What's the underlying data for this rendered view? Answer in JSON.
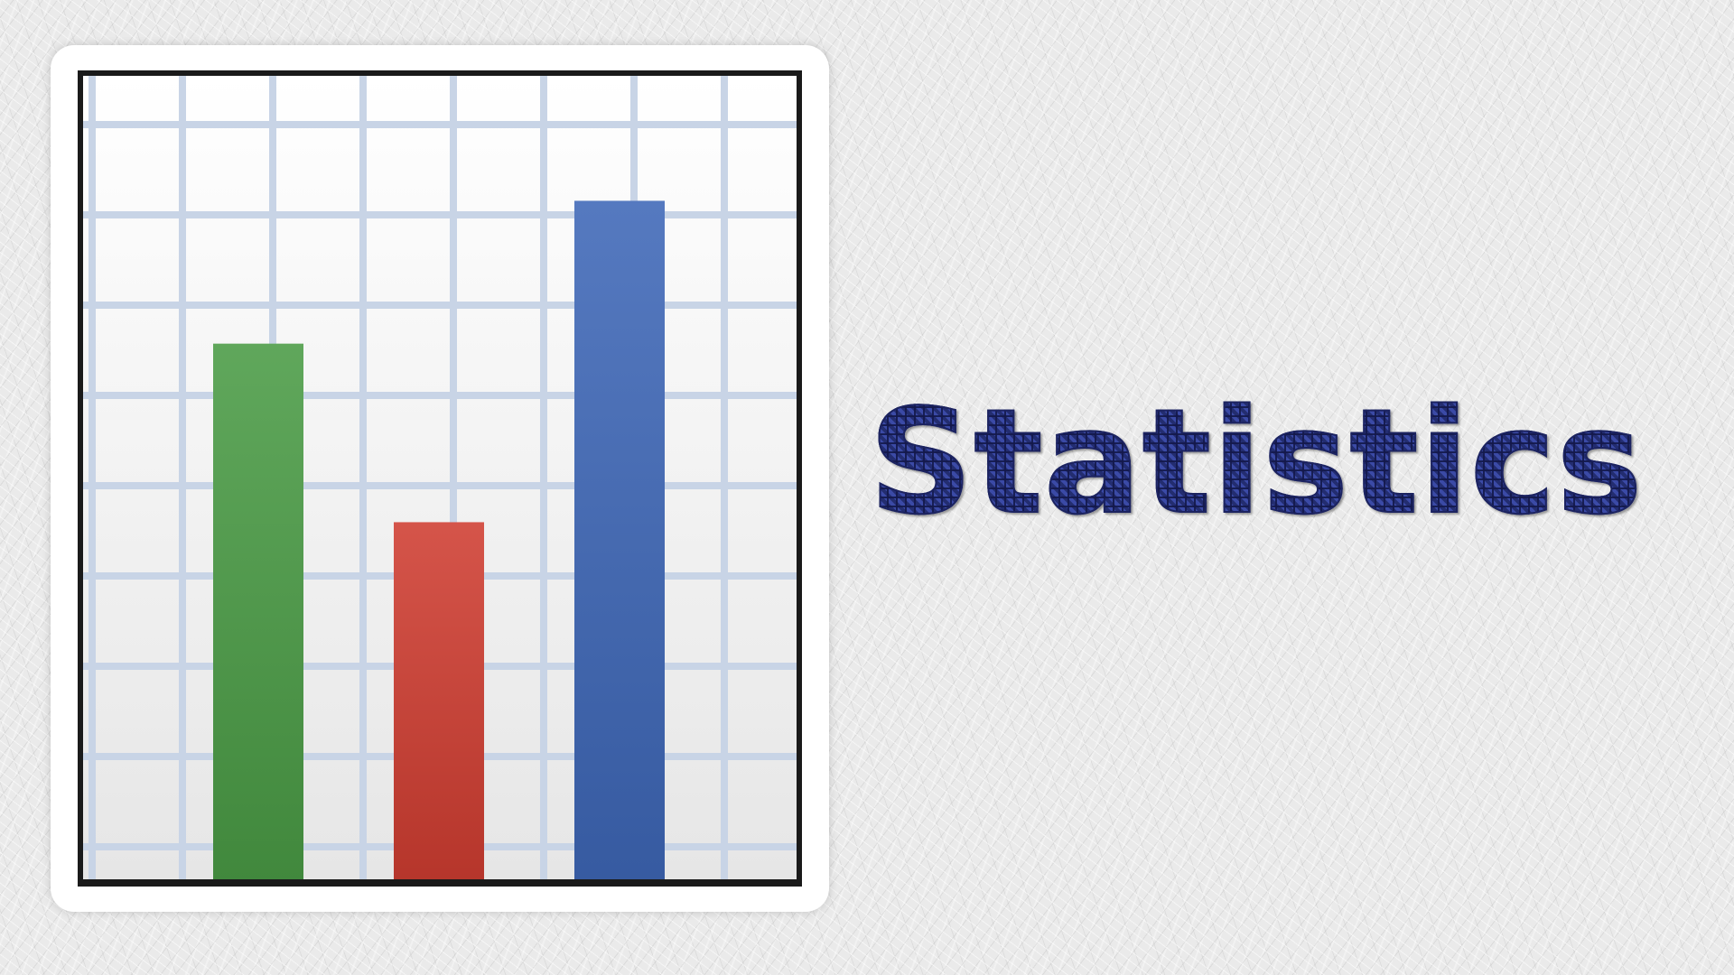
{
  "title": "Statistics",
  "icon": "bar-chart-icon",
  "chart_data": {
    "type": "bar",
    "categories": [
      "",
      "",
      ""
    ],
    "values": [
      60,
      40,
      76
    ],
    "colors": [
      "#4a9b45",
      "#cf3d31",
      "#3e67b7"
    ],
    "ylim": [
      0,
      90
    ],
    "grid": true,
    "title": "",
    "xlabel": "",
    "ylabel": ""
  },
  "colors": {
    "title_text": "#2a3680",
    "grid_line": "#c8d4e6",
    "background": "#eaeaea"
  }
}
